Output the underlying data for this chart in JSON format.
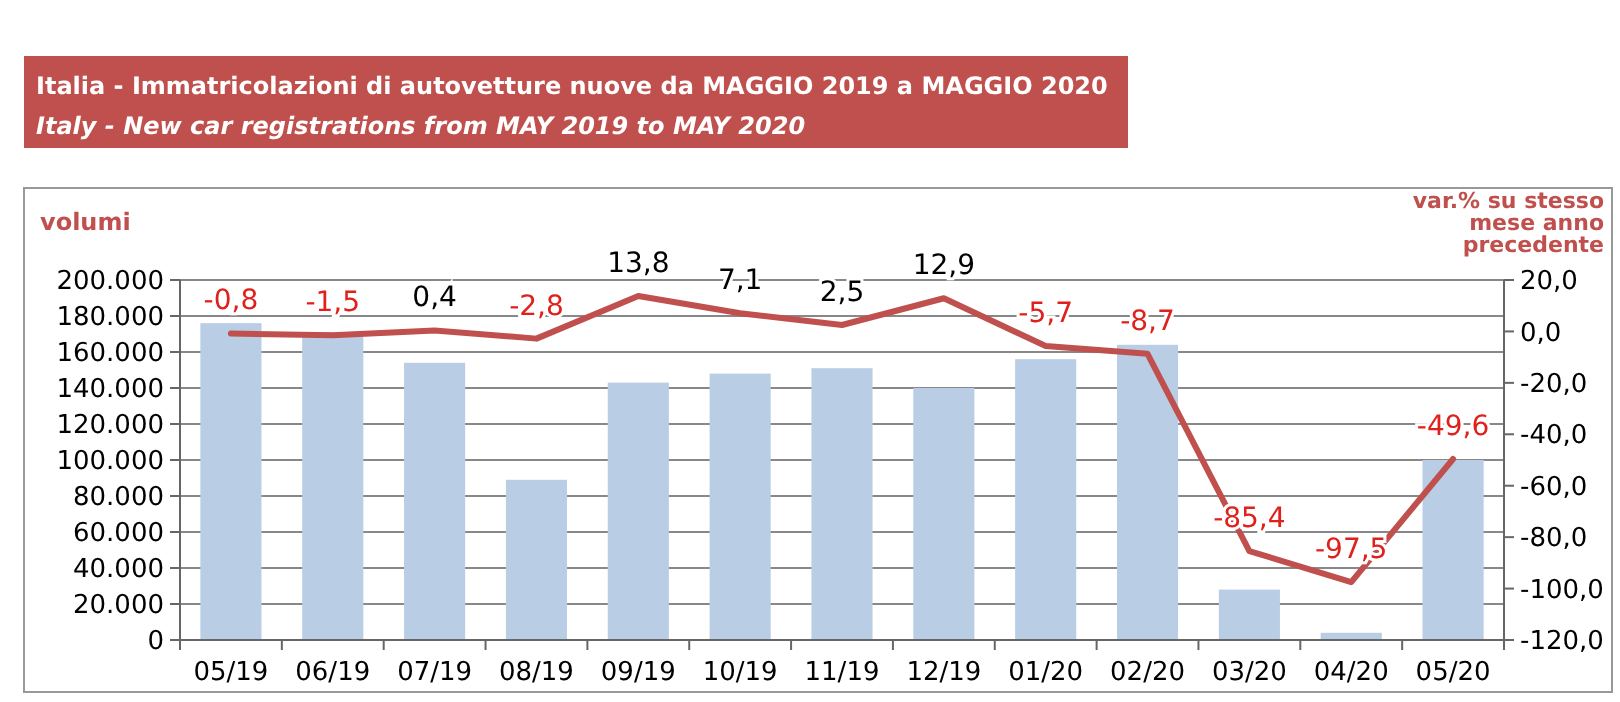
{
  "chart_data": {
    "type": "bar",
    "title": "Italia - Immatricolazioni di autovetture nuove da MAGGIO 2019 a MAGGIO 2020",
    "subtitle": "Italy - New car registrations from MAY 2019 to MAY 2020",
    "ylabel": "volumi",
    "y2label": "var.% su stesso mese anno precedente",
    "categories": [
      "05/19",
      "06/19",
      "07/19",
      "08/19",
      "09/19",
      "10/19",
      "11/19",
      "12/19",
      "01/20",
      "02/20",
      "03/20",
      "04/20",
      "05/20"
    ],
    "series": [
      {
        "color": "#b9cde5",
        "values": [
          176000,
          171000,
          154000,
          89000,
          143000,
          148000,
          151000,
          140000,
          156000,
          164000,
          28000,
          4000,
          100000
        ]
      },
      {
        "type": "line",
        "axis": "y2",
        "color": "#c0504d",
        "marker": "none",
        "values": [
          -0.8,
          -1.5,
          0.4,
          -2.8,
          13.8,
          7.1,
          2.5,
          12.9,
          -5.7,
          -8.7,
          -85.4,
          -97.5,
          -49.6
        ],
        "value_labels": [
          "-0,8",
          "-1,5",
          "0,4",
          "-2,8",
          "13,8",
          "7,1",
          "2,5",
          "12,9",
          "-5,7",
          "-8,7",
          "-85,4",
          "-97,5",
          "-49,6"
        ]
      }
    ],
    "ylim": [
      0,
      200000
    ],
    "yticks": [
      {
        "value": 0,
        "label": "0"
      },
      {
        "value": 20000,
        "label": "20.000"
      },
      {
        "value": 40000,
        "label": "40.000"
      },
      {
        "value": 60000,
        "label": "60.000"
      },
      {
        "value": 80000,
        "label": "80.000"
      },
      {
        "value": 100000,
        "label": "100.000"
      },
      {
        "value": 120000,
        "label": "120.000"
      },
      {
        "value": 140000,
        "label": "140.000"
      },
      {
        "value": 160000,
        "label": "160.000"
      },
      {
        "value": 180000,
        "label": "180.000"
      },
      {
        "value": 200000,
        "label": "200.000"
      }
    ],
    "y2lim": [
      -120,
      20
    ],
    "y2ticks": [
      {
        "value": -120,
        "label": "-120,0"
      },
      {
        "value": -100,
        "label": "-100,0"
      },
      {
        "value": -80,
        "label": "-80,0"
      },
      {
        "value": -60,
        "label": "-60,0"
      },
      {
        "value": -40,
        "label": "-40,0"
      },
      {
        "value": -20,
        "label": "-20,0"
      },
      {
        "value": 0,
        "label": "0,0"
      },
      {
        "value": 20,
        "label": "20,0"
      }
    ],
    "grid": "y"
  }
}
